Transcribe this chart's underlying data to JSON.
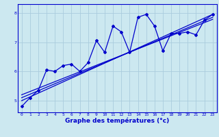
{
  "xlabel": "Graphe des températures (°c)",
  "xlim": [
    -0.5,
    23.5
  ],
  "ylim": [
    4.6,
    8.3
  ],
  "yticks": [
    5,
    6,
    7,
    8
  ],
  "xticks": [
    0,
    1,
    2,
    3,
    4,
    5,
    6,
    7,
    8,
    9,
    10,
    11,
    12,
    13,
    14,
    15,
    16,
    17,
    18,
    19,
    20,
    21,
    22,
    23
  ],
  "bg_color": "#cce8f0",
  "line_color": "#0000cc",
  "grid_color": "#aaccdd",
  "hours": [
    0,
    1,
    2,
    3,
    4,
    5,
    6,
    7,
    8,
    9,
    10,
    11,
    12,
    13,
    14,
    15,
    16,
    17,
    18,
    19,
    20,
    21,
    22,
    23
  ],
  "temp_data": [
    4.8,
    5.1,
    5.35,
    6.05,
    6.0,
    6.2,
    6.25,
    6.0,
    6.3,
    7.05,
    6.65,
    7.55,
    7.35,
    6.65,
    7.85,
    7.95,
    7.55,
    6.7,
    7.3,
    7.3,
    7.35,
    7.25,
    7.75,
    7.95
  ],
  "reg_line1_start": 5.0,
  "reg_line1_end": 7.95,
  "reg_line2_start": 5.1,
  "reg_line2_end": 7.85,
  "reg_line3_start": 5.2,
  "reg_line3_end": 7.78
}
